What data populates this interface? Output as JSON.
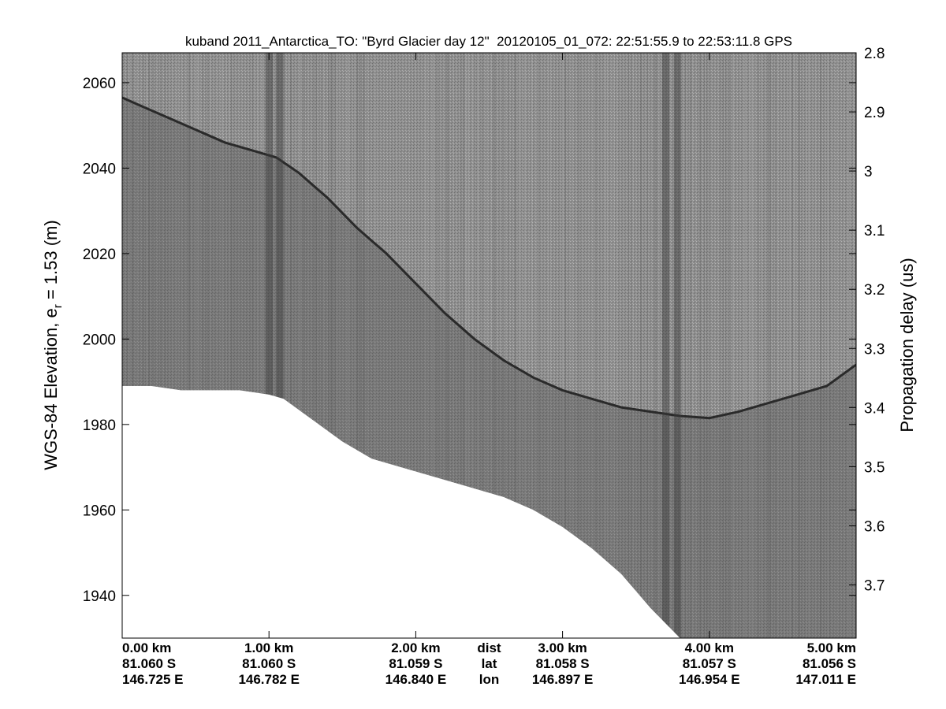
{
  "chart_data": {
    "type": "heatmap",
    "title": "kuband 2011_Antarctica_TO: \"Byrd Glacier day 12\"  20120105_01_072: 22:51:55.9 to 22:53:11.8 GPS",
    "ylabel_left": "WGS-84 Elevation, e",
    "ylabel_left_sub": "r",
    "ylabel_left_tail": " = 1.53 (m)",
    "ylabel_right": "Propagation delay (us)",
    "colormap": "gray",
    "grid": false,
    "xlim_km": [
      0,
      5
    ],
    "ylim_left": [
      1930,
      2067
    ],
    "ylim_right": [
      2.8,
      3.79
    ],
    "left_ticks": [
      1940,
      1960,
      1980,
      2000,
      2020,
      2040,
      2060
    ],
    "left_tick_labels": [
      "1940",
      "1960",
      "1980",
      "2000",
      "2020",
      "2040",
      "2060"
    ],
    "right_ticks": [
      2.8,
      2.9,
      3.0,
      3.1,
      3.2,
      3.3,
      3.4,
      3.5,
      3.6,
      3.7
    ],
    "right_tick_labels": [
      "2.8",
      "2.9",
      "3",
      "3.1",
      "3.2",
      "3.3",
      "3.4",
      "3.5",
      "3.6",
      "3.7"
    ],
    "x_ticks_km": [
      0,
      1,
      2,
      3,
      4,
      5
    ],
    "x_tick_labels": [
      "0.00 km",
      "1.00 km",
      "2.00 km",
      "3.00 km",
      "4.00 km",
      "5.00 km"
    ],
    "lat_labels": [
      "81.060 S",
      "81.060 S",
      "81.059 S",
      "81.058 S",
      "81.057 S",
      "81.056 S"
    ],
    "lon_labels": [
      "146.725 E",
      "146.782 E",
      "146.840 E",
      "146.897 E",
      "146.954 E",
      "147.011 E"
    ],
    "row_labels": [
      "dist",
      "lat",
      "lon"
    ],
    "surface_elevation": {
      "x_km": [
        0,
        0.1,
        0.3,
        0.5,
        0.7,
        0.9,
        1.05,
        1.2,
        1.4,
        1.6,
        1.8,
        2.0,
        2.2,
        2.4,
        2.6,
        2.8,
        3.0,
        3.2,
        3.4,
        3.6,
        3.8,
        4.0,
        4.2,
        4.4,
        4.6,
        4.8,
        5.0
      ],
      "elevation_m": [
        2056.5,
        2055,
        2052,
        2049,
        2046,
        2044,
        2042.5,
        2039,
        2033,
        2026,
        2020,
        2013,
        2006,
        2000,
        1995,
        1991,
        1988,
        1986,
        1984,
        1983,
        1982,
        1981.5,
        1983,
        1985,
        1987,
        1989,
        1994
      ]
    },
    "data_floor": {
      "x_km": [
        0,
        0.2,
        0.4,
        0.6,
        0.8,
        1.0,
        1.1,
        1.3,
        1.5,
        1.7,
        1.9,
        2.0,
        2.3,
        2.6,
        2.8,
        3.0,
        3.2,
        3.4,
        3.6,
        3.8,
        3.9
      ],
      "elevation_m": [
        1989,
        1989,
        1988,
        1988,
        1988,
        1987,
        1986,
        1981,
        1976,
        1972,
        1970,
        1969,
        1966,
        1963,
        1960,
        1956,
        1951,
        1945,
        1937,
        1930,
        1926
      ]
    },
    "dark_columns_km": [
      1.0,
      1.07,
      3.7,
      3.78
    ]
  }
}
